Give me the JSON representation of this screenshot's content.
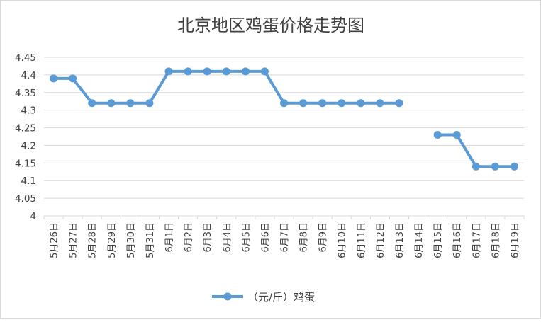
{
  "chart_data": {
    "type": "line",
    "title": "北京地区鸡蛋价格走势图",
    "xlabel": "",
    "ylabel": "",
    "categories": [
      "5月26日",
      "5月27日",
      "5月28日",
      "5月29日",
      "5月30日",
      "5月31日",
      "6月1日",
      "6月2日",
      "6月3日",
      "6月4日",
      "6月5日",
      "6月6日",
      "6月7日",
      "6月8日",
      "6月9日",
      "6月10日",
      "6月11日",
      "6月12日",
      "6月13日",
      "6月14日",
      "6月15日",
      "6月16日",
      "6月17日",
      "6月18日",
      "6月19日"
    ],
    "series": [
      {
        "name": "（元/斤）鸡蛋",
        "color": "#5b9bd5",
        "values": [
          4.39,
          4.39,
          4.32,
          4.32,
          4.32,
          4.32,
          4.41,
          4.41,
          4.41,
          4.41,
          4.41,
          4.41,
          4.32,
          4.32,
          4.32,
          4.32,
          4.32,
          4.32,
          4.32,
          null,
          4.23,
          4.23,
          4.14,
          4.14,
          4.14
        ]
      }
    ],
    "ylim": [
      4,
      4.45
    ],
    "yticks": [
      "4",
      "4.05",
      "4.1",
      "4.15",
      "4.2",
      "4.25",
      "4.3",
      "4.35",
      "4.4",
      "4.45"
    ],
    "grid": true,
    "legend_position": "bottom",
    "colors": {
      "grid": "#d9d9d9",
      "text": "#404040",
      "line": "#5b9bd5"
    }
  }
}
